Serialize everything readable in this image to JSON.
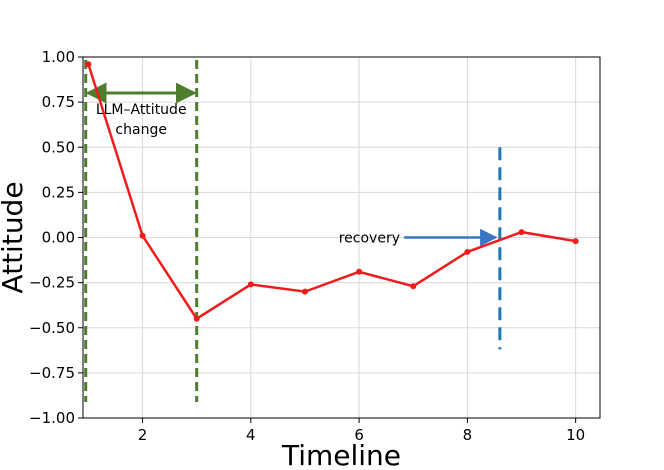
{
  "chart_data": {
    "type": "line",
    "title": "",
    "xlabel": "Timeline",
    "ylabel": "Attitude",
    "xlim": [
      0.9,
      10.45
    ],
    "ylim": [
      -1.0,
      1.0
    ],
    "x_ticks": [
      2,
      4,
      6,
      8,
      10
    ],
    "x_tick_labels": [
      "2",
      "4",
      "6",
      "8",
      "10"
    ],
    "y_ticks": [
      1.0,
      0.75,
      0.5,
      0.25,
      0.0,
      -0.25,
      -0.5,
      -0.75,
      -1.0
    ],
    "y_tick_labels": [
      "1.00",
      "0.75",
      "0.50",
      "0.25",
      "0.00",
      "−0.25",
      "−0.50",
      "−0.75",
      "−1.00"
    ],
    "grid": true,
    "series": [
      {
        "color": "#ee1c1c",
        "x": [
          1,
          2,
          3,
          4,
          5,
          6,
          7,
          8,
          9,
          10
        ],
        "y": [
          0.96,
          0.01,
          -0.45,
          -0.26,
          -0.3,
          -0.19,
          -0.27,
          -0.08,
          0.03,
          -0.02
        ]
      }
    ],
    "annotations": {
      "llm_change": {
        "line1": "LLM–Attitude",
        "line2": "change",
        "x_start": 0.95,
        "x_end": 3.0,
        "color": "#4f7d2e"
      },
      "recovery": {
        "label": "recovery",
        "x": 8.6,
        "y_from": 0.5,
        "y_to": -0.62,
        "arrow_y": 0.0,
        "color": "#1f77b4",
        "arrow_color": "#3a74c4"
      }
    }
  }
}
